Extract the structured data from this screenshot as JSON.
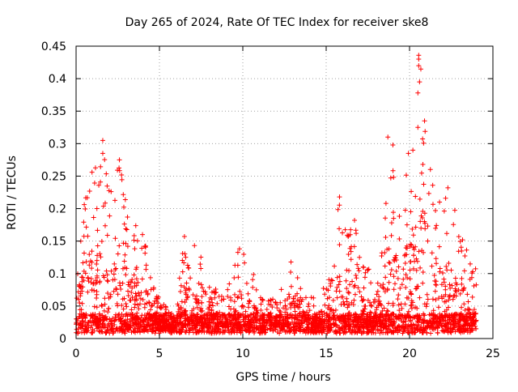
{
  "chart_data": {
    "type": "scatter",
    "title": "Day 265 of 2024, Rate Of TEC Index for receiver ske8",
    "xlabel": "GPS time / hours",
    "ylabel": "ROTI / TECUs",
    "xlim": [
      0,
      25
    ],
    "ylim": [
      0,
      0.45
    ],
    "xticks": [
      0,
      5,
      10,
      15,
      20,
      25
    ],
    "yticks": [
      0,
      0.05,
      0.1,
      0.15,
      0.2,
      0.25,
      0.3,
      0.35,
      0.4,
      0.45
    ],
    "xtick_labels": [
      "0",
      "5",
      "10",
      "15",
      "20",
      "25"
    ],
    "ytick_labels": [
      "0",
      "0.05",
      "0.1",
      "0.15",
      "0.2",
      "0.25",
      "0.3",
      "0.35",
      "0.4",
      "0.45"
    ],
    "grid": true,
    "marker": "+",
    "marker_color": "#ff0000",
    "x_data_range": [
      0,
      24
    ],
    "envelope": [
      [
        0.0,
        0.1
      ],
      [
        0.2,
        0.16
      ],
      [
        0.5,
        0.2
      ],
      [
        0.8,
        0.25
      ],
      [
        1.0,
        0.27
      ],
      [
        1.3,
        0.24
      ],
      [
        1.7,
        0.3
      ],
      [
        2.0,
        0.22
      ],
      [
        2.3,
        0.23
      ],
      [
        2.6,
        0.27
      ],
      [
        3.0,
        0.2
      ],
      [
        3.5,
        0.17
      ],
      [
        4.0,
        0.17
      ],
      [
        4.5,
        0.09
      ],
      [
        5.0,
        0.05
      ],
      [
        5.5,
        0.04
      ],
      [
        6.0,
        0.05
      ],
      [
        6.5,
        0.15
      ],
      [
        7.0,
        0.07
      ],
      [
        7.3,
        0.14
      ],
      [
        8.0,
        0.07
      ],
      [
        9.0,
        0.06
      ],
      [
        9.8,
        0.14
      ],
      [
        10.5,
        0.1
      ],
      [
        11.0,
        0.06
      ],
      [
        12.0,
        0.05
      ],
      [
        12.8,
        0.12
      ],
      [
        13.5,
        0.07
      ],
      [
        14.0,
        0.06
      ],
      [
        15.0,
        0.07
      ],
      [
        15.4,
        0.1
      ],
      [
        15.8,
        0.22
      ],
      [
        16.3,
        0.15
      ],
      [
        16.8,
        0.18
      ],
      [
        17.3,
        0.09
      ],
      [
        18.0,
        0.12
      ],
      [
        18.5,
        0.18
      ],
      [
        18.9,
        0.3
      ],
      [
        19.5,
        0.22
      ],
      [
        19.8,
        0.28
      ],
      [
        20.2,
        0.27
      ],
      [
        20.6,
        0.43
      ],
      [
        21.0,
        0.33
      ],
      [
        21.5,
        0.22
      ],
      [
        22.0,
        0.2
      ],
      [
        22.5,
        0.23
      ],
      [
        23.0,
        0.16
      ],
      [
        23.5,
        0.12
      ],
      [
        24.0,
        0.1
      ]
    ],
    "highlights": [
      {
        "x": 1.6,
        "y": 0.305
      },
      {
        "x": 1.6,
        "y": 0.285
      },
      {
        "x": 2.6,
        "y": 0.275
      },
      {
        "x": 6.5,
        "y": 0.157
      },
      {
        "x": 7.1,
        "y": 0.143
      },
      {
        "x": 9.8,
        "y": 0.138
      },
      {
        "x": 15.8,
        "y": 0.218
      },
      {
        "x": 16.7,
        "y": 0.182
      },
      {
        "x": 18.7,
        "y": 0.31
      },
      {
        "x": 19.0,
        "y": 0.298
      },
      {
        "x": 20.2,
        "y": 0.29
      },
      {
        "x": 20.55,
        "y": 0.436
      },
      {
        "x": 20.55,
        "y": 0.43
      },
      {
        "x": 20.55,
        "y": 0.42
      },
      {
        "x": 20.6,
        "y": 0.395
      },
      {
        "x": 20.5,
        "y": 0.378
      },
      {
        "x": 20.9,
        "y": 0.335
      },
      {
        "x": 20.5,
        "y": 0.325
      },
      {
        "x": 20.8,
        "y": 0.268
      },
      {
        "x": 21.8,
        "y": 0.21
      },
      {
        "x": 22.3,
        "y": 0.232
      }
    ]
  }
}
